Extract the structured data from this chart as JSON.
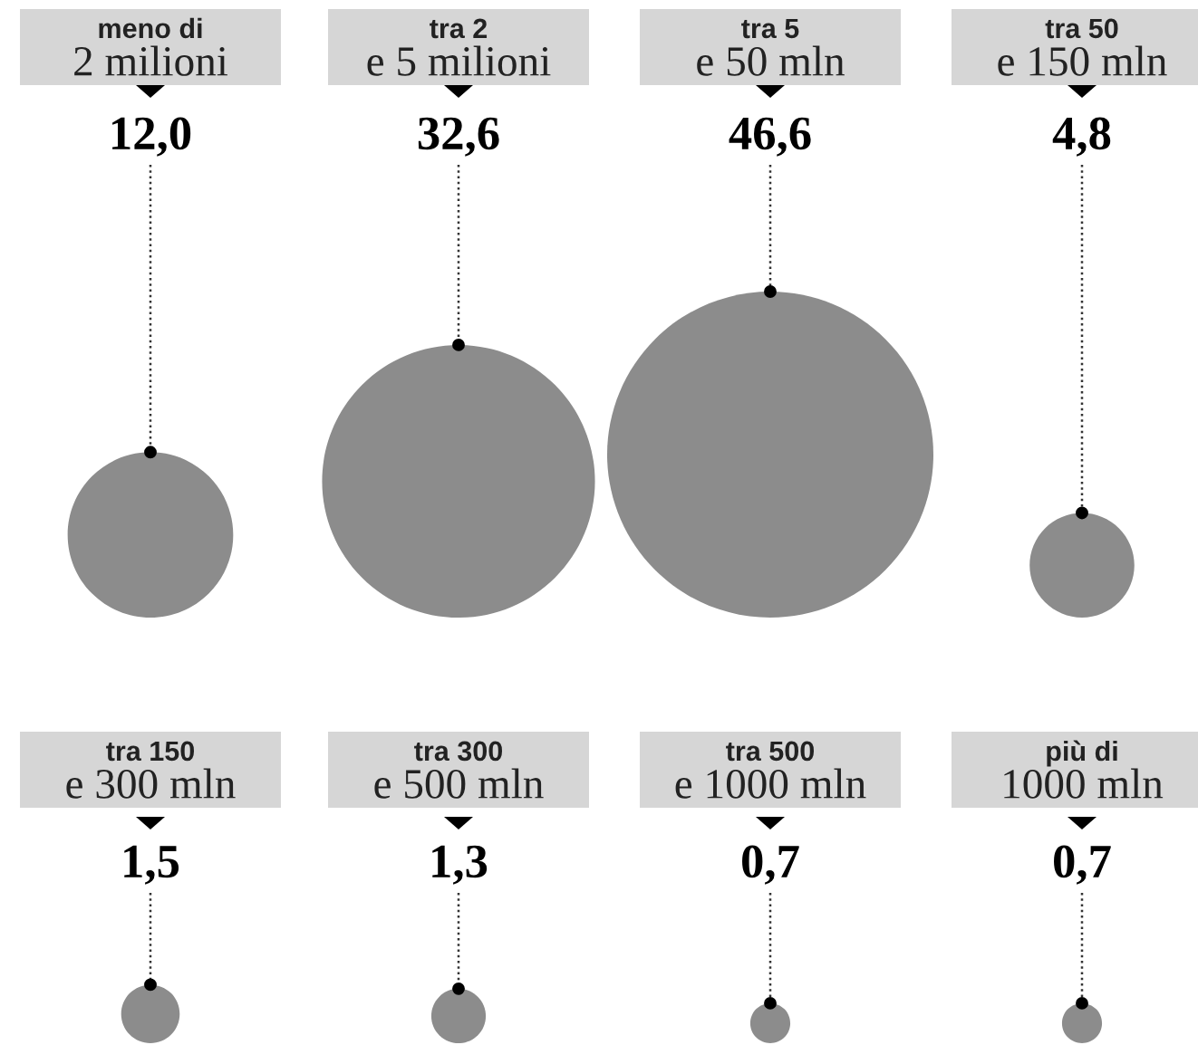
{
  "chart_data": {
    "type": "other",
    "categories": [
      "meno di\n2 milioni",
      "tra 2\ne 5 milioni",
      "tra 5\ne 50 mln",
      "tra 50\ne 150 mln",
      "tra 150\ne 300 mln",
      "tra 300\ne 500 mln",
      "tra 500\ne 1000 mln",
      "più di\n1000 mln"
    ],
    "values": [
      12.0,
      32.6,
      46.6,
      4.8,
      1.5,
      1.3,
      0.7,
      0.7
    ],
    "value_labels": [
      "12,0",
      "32,6",
      "46,6",
      "4,8",
      "1,5",
      "1,3",
      "0,7",
      "0,7"
    ],
    "color": "#8c8c8c",
    "data_labels": true
  }
}
